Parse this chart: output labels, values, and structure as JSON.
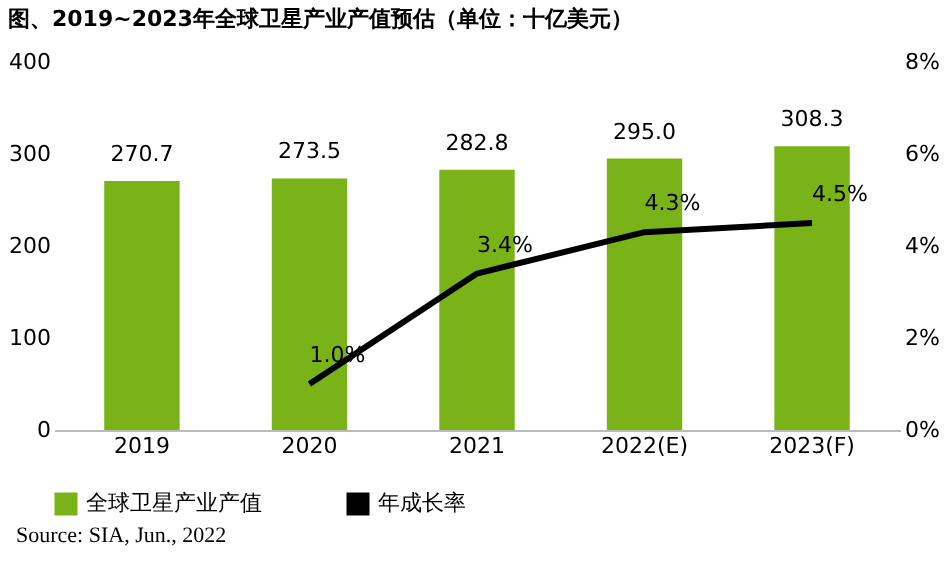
{
  "chart_data": {
    "type": "bar",
    "title": "图、2019~2023年全球卫星产业产值预估（单位：十亿美元）",
    "categories": [
      "2019",
      "2020",
      "2021",
      "2022(E)",
      "2023(F)"
    ],
    "series": [
      {
        "name": "全球卫星产业产值",
        "color": "#7ab317",
        "values": [
          270.7,
          273.5,
          282.8,
          295.0,
          308.3
        ],
        "value_labels": [
          "270.7",
          "273.5",
          "282.8",
          "295.0",
          "308.3"
        ]
      },
      {
        "name": "年成长率",
        "type": "line",
        "axis": "y2",
        "color": "#000000",
        "values": [
          null,
          1.0,
          3.4,
          4.3,
          4.5
        ],
        "value_labels": [
          null,
          "1.0%",
          "3.4%",
          "4.3%",
          "4.5%"
        ]
      }
    ],
    "ylim": [
      0,
      400
    ],
    "yticks": [
      0,
      100,
      200,
      300,
      400
    ],
    "y2lim": [
      0,
      8
    ],
    "y2ticks": [
      {
        "value": 0,
        "label": "0%"
      },
      {
        "value": 2,
        "label": "2%"
      },
      {
        "value": 4,
        "label": "4%"
      },
      {
        "value": 6,
        "label": "6%"
      },
      {
        "value": 8,
        "label": "8%"
      }
    ],
    "legend": "bottom",
    "grid": false,
    "marker": "none",
    "line_style": "solid",
    "annotations": [
      "Source: SIA, Jun., 2022"
    ]
  }
}
